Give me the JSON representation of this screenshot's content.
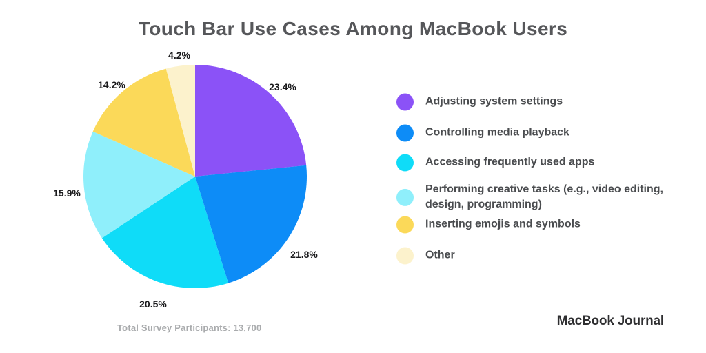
{
  "title": "Touch Bar Use Cases Among MacBook Users",
  "chart_data": {
    "type": "pie",
    "title": "Touch Bar Use Cases Among MacBook Users",
    "categories": [
      "Adjusting system settings",
      "Controlling media playback",
      "Accessing frequently used apps",
      "Performing creative tasks (e.g., video editing, design, programming)",
      "Inserting emojis and symbols",
      "Other"
    ],
    "values": [
      23.4,
      21.8,
      20.5,
      15.9,
      14.2,
      4.2
    ],
    "value_labels": [
      "23.4%",
      "21.8%",
      "20.5%",
      "15.9%",
      "14.2%",
      "4.2%"
    ],
    "colors": [
      "#8B52F7",
      "#0D8CF7",
      "#0FDCF8",
      "#8FEFFB",
      "#FBD959",
      "#FCF2CC"
    ],
    "start_angle_deg": 0,
    "direction": "clockwise",
    "legend_position": "right",
    "annotation": "Total Survey Participants: 13,700"
  },
  "footer": {
    "participants": "Total Survey Participants: 13,700",
    "brand": "MacBook Journal"
  }
}
